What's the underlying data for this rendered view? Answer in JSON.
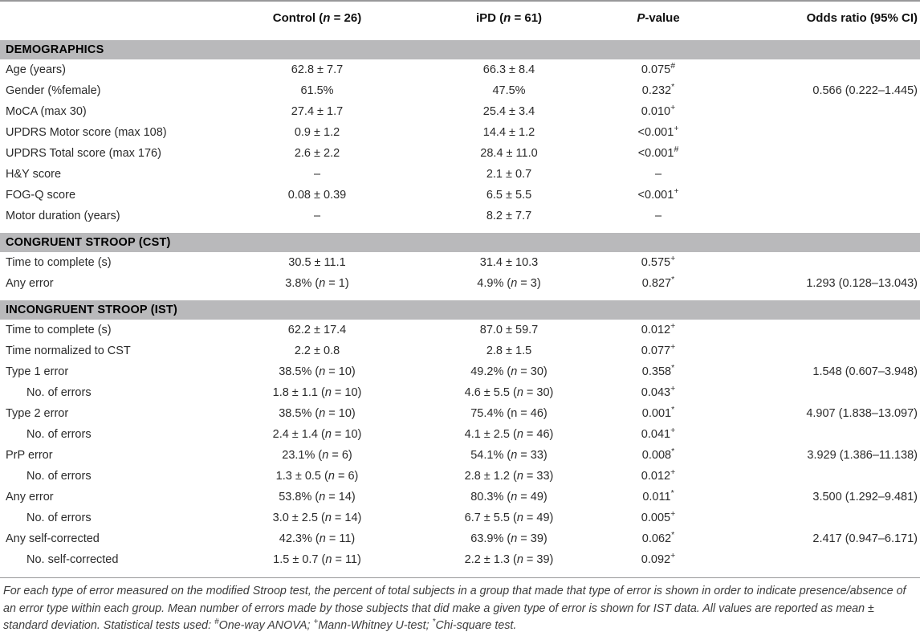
{
  "colors": {
    "section_band": "#b9b9bb",
    "rule": "#98989a",
    "body_text": "#2b2b2b",
    "footnote_text": "#3d3d3d"
  },
  "table": {
    "columns": {
      "label": "",
      "control": "Control (n = 26)",
      "ipd": "iPD (n = 61)",
      "pvalue_italic": "P",
      "pvalue_rest": "-value",
      "odds": "Odds ratio (95% CI)"
    },
    "rows": [
      {
        "type": "section",
        "label": "DEMOGRAPHICS"
      },
      {
        "type": "data",
        "label": "Age (years)",
        "control": "62.8 ± 7.7",
        "ipd": "66.3 ± 8.4",
        "p": "0.075",
        "p_sup": "#",
        "odds": ""
      },
      {
        "type": "data",
        "label": "Gender (%female)",
        "control": "61.5%",
        "ipd": "47.5%",
        "p": "0.232",
        "p_sup": "*",
        "odds": "0.566 (0.222–1.445)"
      },
      {
        "type": "data",
        "label": "MoCA (max 30)",
        "control": "27.4 ± 1.7",
        "ipd": "25.4 ± 3.4",
        "p": "0.010",
        "p_sup": "+",
        "odds": ""
      },
      {
        "type": "data",
        "label": "UPDRS Motor score (max 108)",
        "control": "0.9 ± 1.2",
        "ipd": "14.4 ± 1.2",
        "p": "<0.001",
        "p_sup": "+",
        "odds": ""
      },
      {
        "type": "data",
        "label": "UPDRS Total score (max 176)",
        "control": "2.6 ± 2.2",
        "ipd": "28.4 ± 11.0",
        "p": "<0.001",
        "p_sup": "#",
        "odds": ""
      },
      {
        "type": "data",
        "label": "H&Y score",
        "control": "–",
        "ipd": "2.1 ± 0.7",
        "p": "–",
        "p_sup": "",
        "odds": ""
      },
      {
        "type": "data",
        "label": "FOG-Q score",
        "control": "0.08 ± 0.39",
        "ipd": "6.5 ± 5.5",
        "p": "<0.001",
        "p_sup": "+",
        "odds": ""
      },
      {
        "type": "data",
        "label": "Motor duration (years)",
        "control": "–",
        "ipd": "8.2 ± 7.7",
        "p": "–",
        "p_sup": "",
        "odds": ""
      },
      {
        "type": "section",
        "label": "CONGRUENT STROOP (CST)"
      },
      {
        "type": "data",
        "label": "Time to complete (s)",
        "control": "30.5 ± 11.1",
        "ipd": "31.4 ± 10.3",
        "p": "0.575",
        "p_sup": "+",
        "odds": ""
      },
      {
        "type": "data",
        "label": "Any error",
        "control": "3.8% (n = 1)",
        "ipd": "4.9% (n = 3)",
        "p": "0.827",
        "p_sup": "*",
        "odds": "1.293 (0.128–13.043)"
      },
      {
        "type": "section",
        "label": "INCONGRUENT STROOP (IST)"
      },
      {
        "type": "data",
        "label": "Time to complete (s)",
        "control": "62.2 ± 17.4",
        "ipd": "87.0 ± 59.7",
        "p": "0.012",
        "p_sup": "+",
        "odds": ""
      },
      {
        "type": "data",
        "label": "Time normalized to CST",
        "control": "2.2 ± 0.8",
        "ipd": "2.8 ± 1.5",
        "p": "0.077",
        "p_sup": "+",
        "odds": ""
      },
      {
        "type": "data",
        "label": "Type 1 error",
        "control": "38.5% (n = 10)",
        "ipd": "49.2% (n = 30)",
        "p": "0.358",
        "p_sup": "*",
        "odds": "1.548 (0.607–3.948)"
      },
      {
        "type": "data",
        "label": "No. of errors",
        "indent": true,
        "control": "1.8 ± 1.1 (n = 10)",
        "ipd": "4.6 ± 5.5 (n = 30)",
        "p": "0.043",
        "p_sup": "+",
        "odds": ""
      },
      {
        "type": "data",
        "label": "Type 2 error",
        "control": "38.5% (n = 10)",
        "ipd": "75.4% (n = 46)",
        "ipd_roman_n": true,
        "p": "0.001",
        "p_sup": "*",
        "odds": "4.907 (1.838–13.097)"
      },
      {
        "type": "data",
        "label": "No. of errors",
        "indent": true,
        "control": "2.4 ± 1.4 (n = 10)",
        "ipd": "4.1 ± 2.5 (n = 46)",
        "p": "0.041",
        "p_sup": "+",
        "odds": ""
      },
      {
        "type": "data",
        "label": "PrP error",
        "control": "23.1% (n = 6)",
        "ipd": "54.1% (n = 33)",
        "p": "0.008",
        "p_sup": "*",
        "odds": "3.929 (1.386–11.138)"
      },
      {
        "type": "data",
        "label": "No. of errors",
        "indent": true,
        "control": "1.3 ± 0.5 (n = 6)",
        "ipd": "2.8 ± 1.2 (n = 33)",
        "p": "0.012",
        "p_sup": "+",
        "odds": ""
      },
      {
        "type": "data",
        "label": "Any error",
        "control": "53.8% (n = 14)",
        "ipd": "80.3% (n = 49)",
        "p": "0.011",
        "p_sup": "*",
        "odds": "3.500 (1.292–9.481)"
      },
      {
        "type": "data",
        "label": "No. of errors",
        "indent": true,
        "control": "3.0 ± 2.5 (n = 14)",
        "ipd": "6.7 ± 5.5 (n = 49)",
        "p": "0.005",
        "p_sup": "+",
        "odds": ""
      },
      {
        "type": "data",
        "label": "Any self-corrected",
        "control": "42.3% (n = 11)",
        "ipd": "63.9% (n = 39)",
        "p": "0.062",
        "p_sup": "*",
        "odds": "2.417 (0.947–6.171)"
      },
      {
        "type": "data",
        "label": "No. self-corrected",
        "indent": true,
        "control": "1.5 ± 0.7 (n = 11)",
        "ipd": "2.2 ± 1.3 (n = 39)",
        "p": "0.092",
        "p_sup": "+",
        "odds": ""
      }
    ]
  },
  "footnote": {
    "text_1": "For each type of error measured on the modified Stroop test, the percent of total subjects in a group that made that type of error is shown in order to indicate presence/absence of an error type within each group. Mean number of errors made by those subjects that did make a given type of error is shown for IST data. All values are reported as mean ± standard deviation. Statistical tests used: ",
    "sup_anova": "#",
    "text_2": "One-way ANOVA; ",
    "sup_mw": "+",
    "text_3": "Mann-Whitney U-test; ",
    "sup_chi": "*",
    "text_4": "Chi-square test."
  }
}
